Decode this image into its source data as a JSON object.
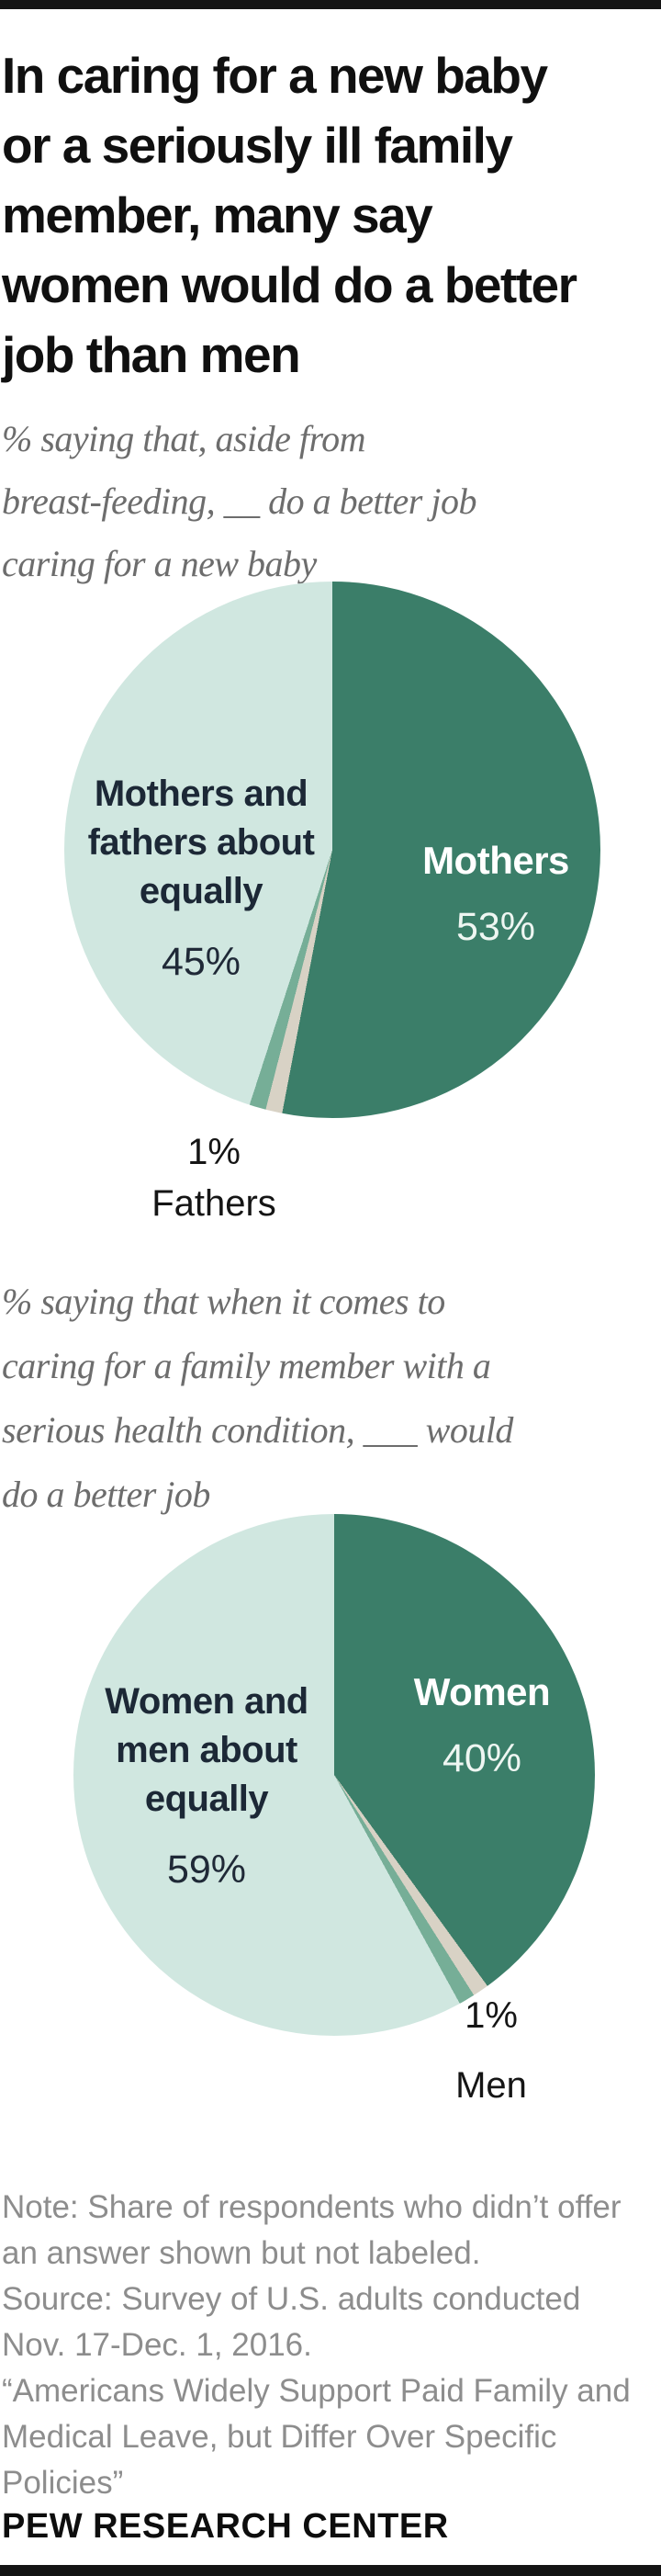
{
  "page": {
    "title_lines": [
      "In caring for a new baby",
      "or a seriously ill family",
      "member, many say",
      "women would do a better",
      "job than men"
    ],
    "footer_brand": "PEW RESEARCH CENTER",
    "notes_lines": [
      "Note: Share of respondents who didn’t offer",
      "an answer shown but not labeled.",
      "Source: Survey of U.S. adults conducted",
      "Nov. 17-Dec. 1, 2016.",
      "“Americans Widely Support Paid Family and",
      "Medical Leave, but Differ Over Specific",
      "Policies”"
    ]
  },
  "pie1": {
    "subtitle_lines": [
      "% saying that, aside from",
      "breast-feeding, __ do a better job",
      "caring for a new baby"
    ],
    "label_equally_lines": [
      "Mothers and",
      "fathers about",
      "equally"
    ],
    "pct_equally": "45%",
    "label_main": "Mothers",
    "pct_main": "53%",
    "pct_sliver": "1%",
    "label_sliver": "Fathers"
  },
  "pie2": {
    "subtitle_lines": [
      "% saying that when it comes to",
      "caring for a family member with a",
      "serious health condition, ___ would",
      "do a better job"
    ],
    "label_equally_lines": [
      "Women and",
      "men about",
      "equally"
    ],
    "pct_equally": "59%",
    "label_main": "Women",
    "pct_main": "40%",
    "pct_sliver": "1%",
    "label_sliver": "Men"
  },
  "colors": {
    "dark_green": "#3b7e69",
    "light_mint": "#d0e7e0",
    "sliver_green": "#76ae97",
    "sliver_beige": "#d8d2c5",
    "title_text": "#101010",
    "subtitle_text": "#6d6d6d",
    "note_text": "#8d8d8d",
    "dark_label_text": "#1c2836",
    "border_bar": "#141414"
  },
  "chart_data": [
    {
      "type": "pie",
      "title": "% saying that, aside from breast-feeding, __ do a better job caring for a new baby",
      "start_angle_deg": 0,
      "direction": "clockwise",
      "slices": [
        {
          "label": "Mothers",
          "value": 53,
          "color": "#3b7e69"
        },
        {
          "label": "No answer (not labeled)",
          "value": 1,
          "color": "#d8d2c5"
        },
        {
          "label": "Fathers",
          "value": 1,
          "color": "#76ae97"
        },
        {
          "label": "Mothers and fathers about equally",
          "value": 45,
          "color": "#d0e7e0"
        }
      ]
    },
    {
      "type": "pie",
      "title": "% saying that when it comes to caring for a family member with a serious health condition, ___ would do a better job",
      "start_angle_deg": 0,
      "direction": "clockwise",
      "slices": [
        {
          "label": "Women",
          "value": 40,
          "color": "#3b7e69"
        },
        {
          "label": "No answer (not labeled)",
          "value": 1,
          "color": "#d8d2c5"
        },
        {
          "label": "Men",
          "value": 1,
          "color": "#76ae97"
        },
        {
          "label": "Women and men about equally",
          "value": 59,
          "color": "#d0e7e0"
        }
      ]
    }
  ]
}
